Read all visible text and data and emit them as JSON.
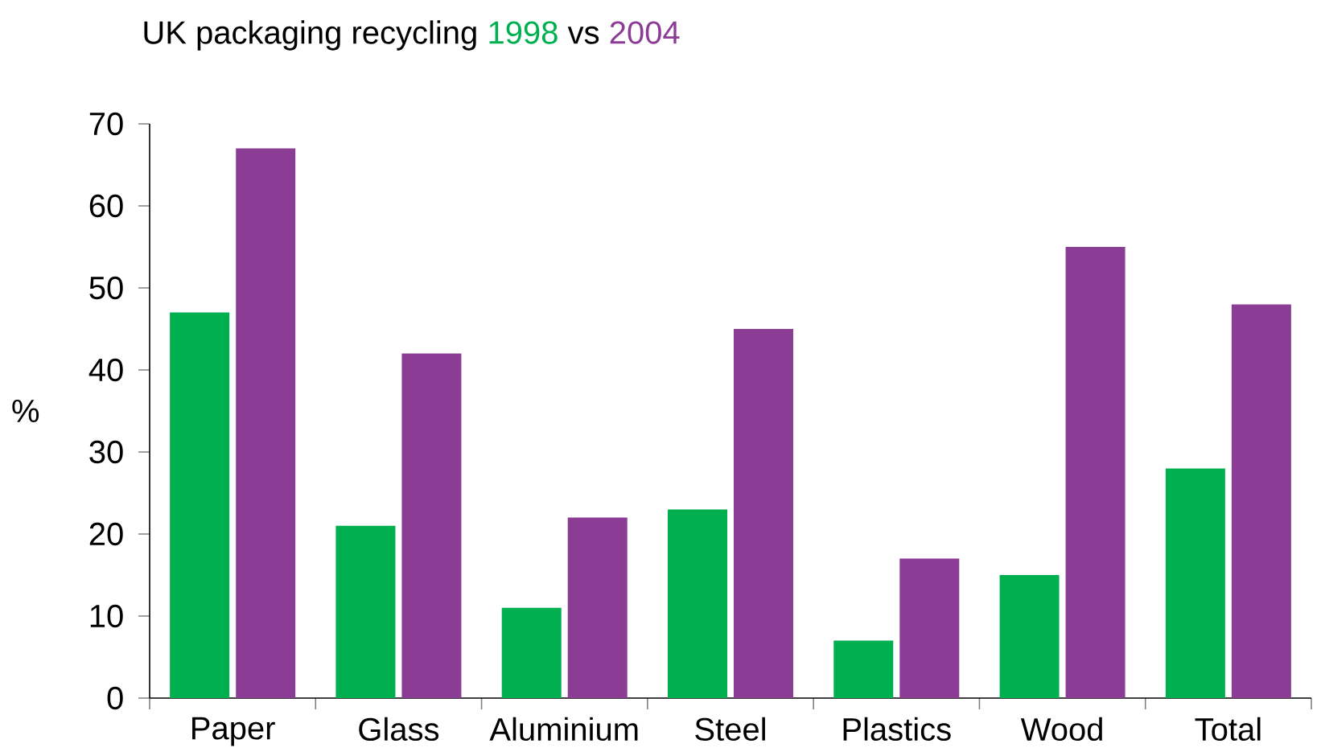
{
  "chart_data": {
    "type": "bar",
    "title": "UK packaging recycling",
    "annotations": [
      "vs"
    ],
    "ylabel": "%",
    "categories": [
      "Paper",
      "Glass",
      "Aluminium",
      "Steel",
      "Plastics",
      "Wood",
      "Total"
    ],
    "series": [
      {
        "name": "1998",
        "color": "#00b050",
        "values": [
          47,
          21,
          11,
          23,
          7,
          15,
          28
        ]
      },
      {
        "name": "2004",
        "color": "#8b3d96",
        "values": [
          67,
          42,
          22,
          45,
          17,
          55,
          48
        ]
      }
    ],
    "ylim": [
      0,
      70
    ],
    "yticks": [
      0,
      10,
      20,
      30,
      40,
      50,
      60,
      70
    ],
    "grid": false,
    "legend": false
  }
}
